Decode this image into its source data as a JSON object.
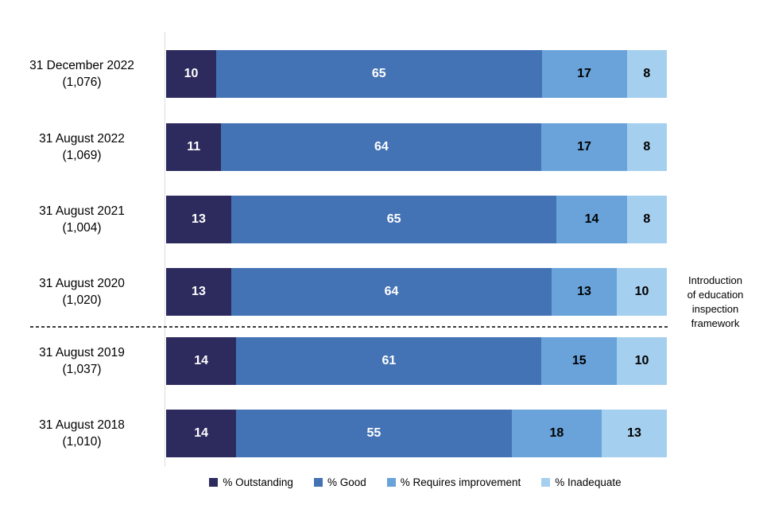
{
  "chart_data": {
    "type": "bar",
    "orientation": "horizontal",
    "stacked": true,
    "unit": "%",
    "xlim": [
      0,
      100
    ],
    "grid": false,
    "legend_position": "bottom",
    "categories": [
      "31 December 2022",
      "31 August 2022",
      "31 August 2021",
      "31 August 2020",
      "31 August 2019",
      "31 August 2018"
    ],
    "category_counts": [
      "(1,076)",
      "(1,069)",
      "(1,004)",
      "(1,020)",
      "(1,037)",
      "(1,010)"
    ],
    "series": [
      {
        "name": "% Outstanding",
        "color": "#2D2B5E",
        "label_color": "#FFFFFF",
        "values": [
          10,
          11,
          13,
          13,
          14,
          14
        ]
      },
      {
        "name": "% Good",
        "color": "#4473B5",
        "label_color": "#FFFFFF",
        "values": [
          65,
          64,
          65,
          64,
          61,
          55
        ]
      },
      {
        "name": "% Requires improvement",
        "color": "#69A3DA",
        "label_color": "#000000",
        "values": [
          17,
          17,
          14,
          13,
          15,
          18
        ]
      },
      {
        "name": "% Inadequate",
        "color": "#A5CFEE",
        "label_color": "#000000",
        "values": [
          8,
          8,
          8,
          10,
          10,
          13
        ]
      }
    ],
    "divider_after_index": 3,
    "annotation": "Introduction\nof education\ninspection\nframework",
    "colors": {
      "axis_line": "#DCDCDC",
      "divider_line": "#3C3C3C",
      "background": "#FFFFFF"
    }
  }
}
